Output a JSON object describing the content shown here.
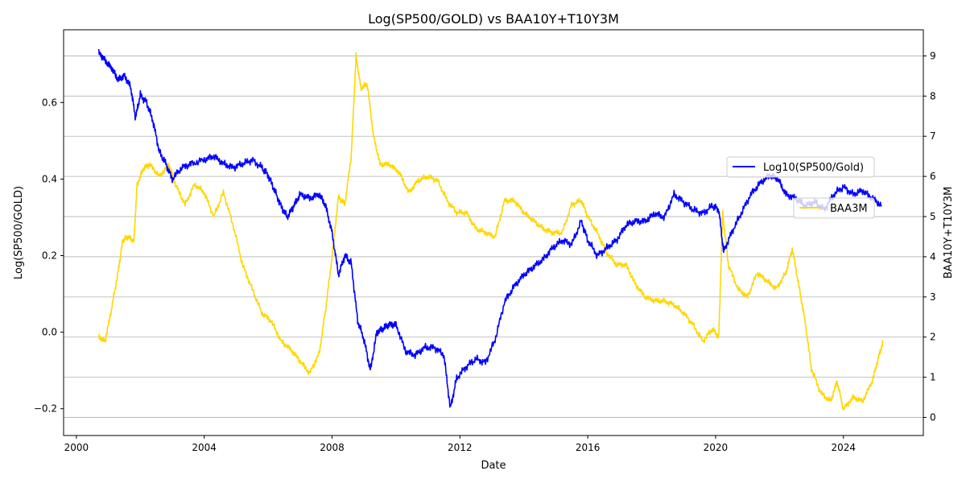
{
  "chart_data": {
    "type": "line",
    "title": "Log(SP500/GOLD) vs BAA10Y+T10Y3M",
    "xlabel": "Date",
    "ylabel_left": "Log(SP500/GOLD)",
    "ylabel_right": "BAA10Y+T10Y3M",
    "xlim": [
      1999.6,
      2026.5
    ],
    "ylim_left": [
      -0.27,
      0.79
    ],
    "ylim_right": [
      -0.45,
      9.65
    ],
    "x_ticks": [
      2000,
      2004,
      2008,
      2012,
      2016,
      2020,
      2024
    ],
    "x_tick_labels": [
      "2000",
      "2004",
      "2008",
      "2012",
      "2016",
      "2020",
      "2024"
    ],
    "y_ticks_left": [
      -0.2,
      0.0,
      0.2,
      0.4,
      0.6
    ],
    "y_tick_labels_left": [
      "−0.2",
      "0.0",
      "0.2",
      "0.4",
      "0.6"
    ],
    "y_ticks_right": [
      0,
      1,
      2,
      3,
      4,
      5,
      6,
      7,
      8,
      9
    ],
    "y_tick_labels_right": [
      "0",
      "1",
      "2",
      "3",
      "4",
      "5",
      "6",
      "7",
      "8",
      "9"
    ],
    "grid": "horizontal-right-axis",
    "series": [
      {
        "name": "Log10(SP500/Gold)",
        "axis": "left",
        "color": "#0000ff",
        "legend_placement": "center-right",
        "x": [
          2000.7,
          2000.9,
          2001.1,
          2001.3,
          2001.5,
          2001.7,
          2001.85,
          2002.0,
          2002.2,
          2002.4,
          2002.6,
          2002.8,
          2003.0,
          2003.3,
          2003.6,
          2004.0,
          2004.3,
          2004.6,
          2004.9,
          2005.2,
          2005.5,
          2005.8,
          2006.0,
          2006.2,
          2006.4,
          2006.6,
          2006.8,
          2007.0,
          2007.3,
          2007.6,
          2007.8,
          2008.0,
          2008.2,
          2008.4,
          2008.6,
          2008.8,
          2009.0,
          2009.2,
          2009.4,
          2009.6,
          2009.8,
          2010.0,
          2010.3,
          2010.6,
          2010.9,
          2011.2,
          2011.5,
          2011.7,
          2011.9,
          2012.2,
          2012.5,
          2012.8,
          2013.1,
          2013.4,
          2013.7,
          2014.0,
          2014.3,
          2014.6,
          2014.9,
          2015.2,
          2015.5,
          2015.8,
          2016.0,
          2016.3,
          2016.6,
          2016.9,
          2017.2,
          2017.5,
          2017.8,
          2018.1,
          2018.4,
          2018.7,
          2019.0,
          2019.3,
          2019.6,
          2019.9,
          2020.1,
          2020.25,
          2020.5,
          2020.8,
          2021.1,
          2021.4,
          2021.7,
          2021.95,
          2022.2,
          2022.5,
          2022.8,
          2023.1,
          2023.4,
          2023.7,
          2024.0,
          2024.3,
          2024.6,
          2024.9,
          2025.2
        ],
        "values": [
          0.73,
          0.71,
          0.69,
          0.66,
          0.67,
          0.64,
          0.56,
          0.62,
          0.6,
          0.55,
          0.47,
          0.44,
          0.4,
          0.43,
          0.44,
          0.45,
          0.46,
          0.44,
          0.43,
          0.44,
          0.45,
          0.43,
          0.41,
          0.37,
          0.33,
          0.3,
          0.33,
          0.36,
          0.35,
          0.36,
          0.33,
          0.26,
          0.15,
          0.2,
          0.18,
          0.03,
          -0.02,
          -0.1,
          0.0,
          0.01,
          0.02,
          0.02,
          -0.05,
          -0.06,
          -0.04,
          -0.04,
          -0.06,
          -0.2,
          -0.12,
          -0.09,
          -0.07,
          -0.08,
          -0.02,
          0.08,
          0.12,
          0.15,
          0.17,
          0.19,
          0.22,
          0.24,
          0.23,
          0.29,
          0.24,
          0.2,
          0.22,
          0.24,
          0.28,
          0.29,
          0.29,
          0.31,
          0.3,
          0.36,
          0.34,
          0.32,
          0.31,
          0.33,
          0.32,
          0.21,
          0.26,
          0.31,
          0.36,
          0.39,
          0.41,
          0.4,
          0.36,
          0.35,
          0.33,
          0.34,
          0.32,
          0.36,
          0.38,
          0.36,
          0.37,
          0.35,
          0.33
        ]
      },
      {
        "name": "BAA3M",
        "axis": "right",
        "color": "#ffd700",
        "legend_placement": "center-right",
        "x": [
          2000.7,
          2000.9,
          2001.1,
          2001.3,
          2001.45,
          2001.6,
          2001.8,
          2001.9,
          2002.1,
          2002.3,
          2002.6,
          2002.9,
          2003.1,
          2003.4,
          2003.7,
          2004.0,
          2004.3,
          2004.6,
          2004.9,
          2005.2,
          2005.5,
          2005.8,
          2006.1,
          2006.4,
          2006.7,
          2007.0,
          2007.3,
          2007.6,
          2007.8,
          2008.0,
          2008.2,
          2008.4,
          2008.6,
          2008.75,
          2008.9,
          2009.1,
          2009.3,
          2009.5,
          2009.8,
          2010.1,
          2010.4,
          2010.7,
          2011.0,
          2011.3,
          2011.6,
          2011.9,
          2012.2,
          2012.5,
          2012.8,
          2013.1,
          2013.4,
          2013.7,
          2014.0,
          2014.3,
          2014.6,
          2014.9,
          2015.2,
          2015.5,
          2015.8,
          2016.0,
          2016.3,
          2016.6,
          2016.9,
          2017.2,
          2017.5,
          2017.8,
          2018.1,
          2018.4,
          2018.7,
          2019.0,
          2019.3,
          2019.6,
          2019.9,
          2020.1,
          2020.22,
          2020.4,
          2020.7,
          2021.0,
          2021.3,
          2021.6,
          2021.9,
          2022.2,
          2022.4,
          2022.6,
          2022.8,
          2023.0,
          2023.3,
          2023.6,
          2023.8,
          2024.0,
          2024.3,
          2024.6,
          2024.9,
          2025.1,
          2025.25
        ],
        "values": [
          2.0,
          1.9,
          2.7,
          3.6,
          4.4,
          4.5,
          4.4,
          5.8,
          6.2,
          6.3,
          6.0,
          6.3,
          5.8,
          5.3,
          5.8,
          5.6,
          5.0,
          5.6,
          4.8,
          3.8,
          3.2,
          2.6,
          2.4,
          1.9,
          1.7,
          1.4,
          1.1,
          1.6,
          2.7,
          4.0,
          5.5,
          5.3,
          6.5,
          9.0,
          8.2,
          8.3,
          7.0,
          6.3,
          6.3,
          6.1,
          5.6,
          5.9,
          6.0,
          5.9,
          5.4,
          5.1,
          5.1,
          4.7,
          4.6,
          4.5,
          5.4,
          5.4,
          5.1,
          4.9,
          4.7,
          4.6,
          4.6,
          5.3,
          5.4,
          5.0,
          4.6,
          4.1,
          3.8,
          3.8,
          3.3,
          3.0,
          2.9,
          2.9,
          2.8,
          2.6,
          2.3,
          1.9,
          2.2,
          2.0,
          5.1,
          3.8,
          3.2,
          3.0,
          3.6,
          3.4,
          3.2,
          3.6,
          4.2,
          3.3,
          2.4,
          1.2,
          0.6,
          0.4,
          0.9,
          0.2,
          0.5,
          0.4,
          0.9,
          1.5,
          1.9
        ]
      }
    ]
  }
}
